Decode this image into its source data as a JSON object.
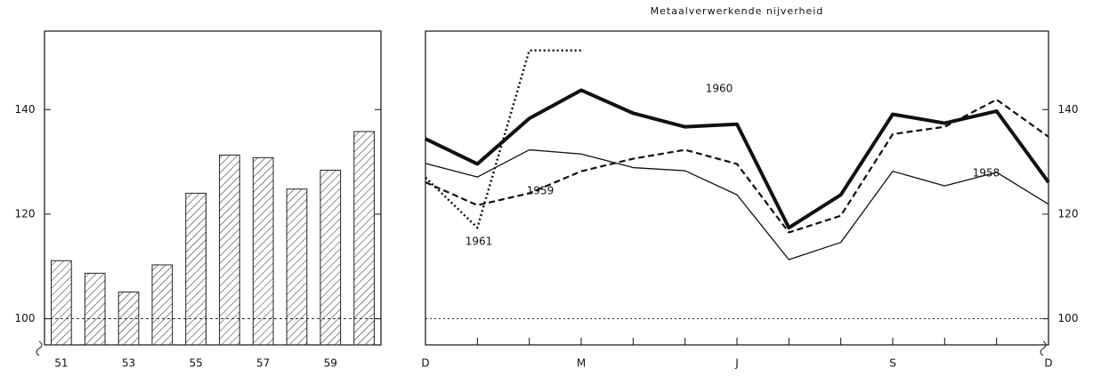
{
  "chart_data": [
    {
      "type": "bar",
      "title": "Metaalverwerkende nijverheid",
      "categories": [
        "51",
        null,
        "53",
        null,
        "55",
        null,
        "57",
        null,
        "59",
        null
      ],
      "values": [
        111.1,
        108.7,
        105.1,
        110.3,
        124.0,
        131.3,
        130.8,
        124.8,
        128.4,
        135.8
      ],
      "color": "#222222",
      "ylim": [
        95,
        155
      ],
      "yticks": [
        100,
        120,
        140
      ]
    },
    {
      "type": "line",
      "categories": [
        "D",
        null,
        null,
        "M",
        null,
        null,
        "J",
        null,
        null,
        "S",
        null,
        null,
        "D"
      ],
      "series": [
        {
          "name": "1958",
          "color": "#111111",
          "values": [
            129.7,
            127.1,
            132.3,
            131.5,
            128.9,
            128.3,
            123.7,
            111.3,
            114.6,
            128.2,
            125.4,
            128.0,
            121.9
          ]
        },
        {
          "name": "1959",
          "color": "#111111",
          "values": [
            126.1,
            121.7,
            124.0,
            128.2,
            130.6,
            132.3,
            129.6,
            116.5,
            119.7,
            135.3,
            136.7,
            141.9,
            134.8
          ]
        },
        {
          "name": "1960",
          "color": "#111111",
          "values": [
            134.4,
            129.6,
            138.3,
            143.7,
            139.3,
            136.7,
            137.2,
            117.4,
            123.7,
            139.1,
            137.4,
            139.7,
            126.1
          ]
        },
        {
          "name": "1961",
          "color": "#111111",
          "values": [
            127.0,
            117.4,
            151.3,
            151.3,
            null,
            null,
            null,
            null,
            null,
            null,
            null,
            null,
            null
          ]
        }
      ],
      "ylim": [
        95,
        155
      ],
      "yticks": [
        100,
        120,
        140
      ]
    }
  ]
}
